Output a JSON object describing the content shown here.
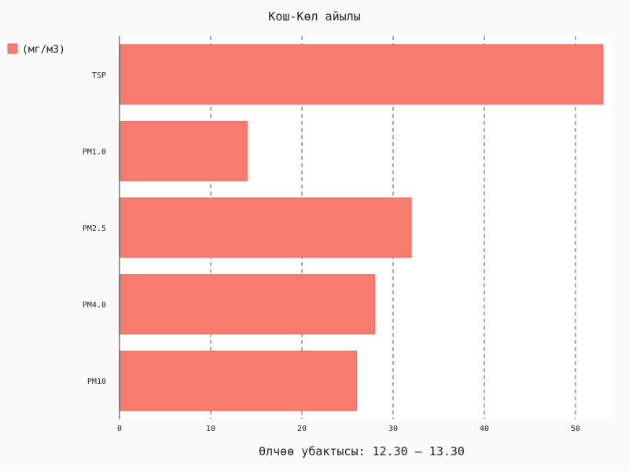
{
  "chart_data": {
    "type": "bar",
    "orientation": "horizontal",
    "title": "Кош-Көл айылы",
    "xlabel": "Өлчөө убактысы: 12.30 – 13.30",
    "ylabel": "",
    "categories": [
      "TSP",
      "PM1.0",
      "PM2.5",
      "PM4.0",
      "PM10"
    ],
    "series": [
      {
        "name": "(мг/м3)",
        "values": [
          53,
          14,
          32,
          28,
          26
        ],
        "color": "#f87b70"
      }
    ],
    "xlim": [
      0,
      54
    ],
    "xticks": [
      0,
      10,
      20,
      30,
      40,
      50
    ],
    "grid": "vertical-dashed",
    "legend_position": "top-left"
  },
  "colors": {
    "background": "#fafafa",
    "plot_background": "#ffffff",
    "bar": "#f87b70",
    "bar_edge": "#e06a60",
    "grid": "#555555",
    "axis": "#333333",
    "text": "#222222"
  }
}
